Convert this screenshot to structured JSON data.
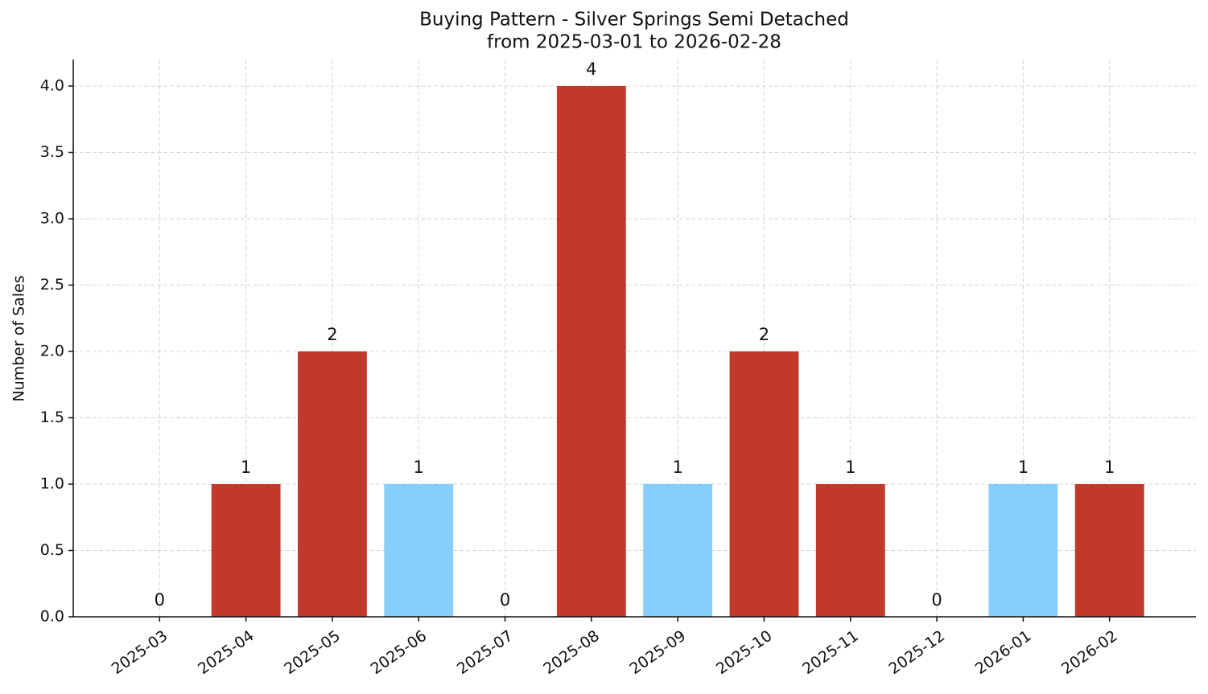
{
  "chart_data": {
    "type": "bar",
    "title": "Buying Pattern - Silver Springs Semi Detached",
    "subtitle": "from 2025-03-01 to 2026-02-28",
    "y_label": "Number of Sales",
    "categories": [
      "2025-03",
      "2025-04",
      "2025-05",
      "2025-06",
      "2025-07",
      "2025-08",
      "2025-09",
      "2025-10",
      "2025-11",
      "2025-12",
      "2026-01",
      "2026-02"
    ],
    "values": [
      0,
      1,
      2,
      1,
      0,
      4,
      1,
      2,
      1,
      0,
      1,
      1
    ],
    "colors": [
      "#c0392b",
      "#c0392b",
      "#c0392b",
      "#87cefa",
      "#c0392b",
      "#c0392b",
      "#87cefa",
      "#c0392b",
      "#c0392b",
      "#c0392b",
      "#87cefa",
      "#c0392b"
    ],
    "ylim": [
      0,
      4.2
    ],
    "yticks": [
      {
        "value": 0,
        "label": "0.0"
      },
      0.5,
      {
        "value": 1,
        "label": "1.0"
      },
      1.5,
      {
        "value": 2,
        "label": "2.0"
      },
      2.5,
      {
        "value": 3,
        "label": "3.0"
      },
      3.5,
      {
        "value": 4,
        "label": "4.0"
      }
    ],
    "grid": true
  }
}
